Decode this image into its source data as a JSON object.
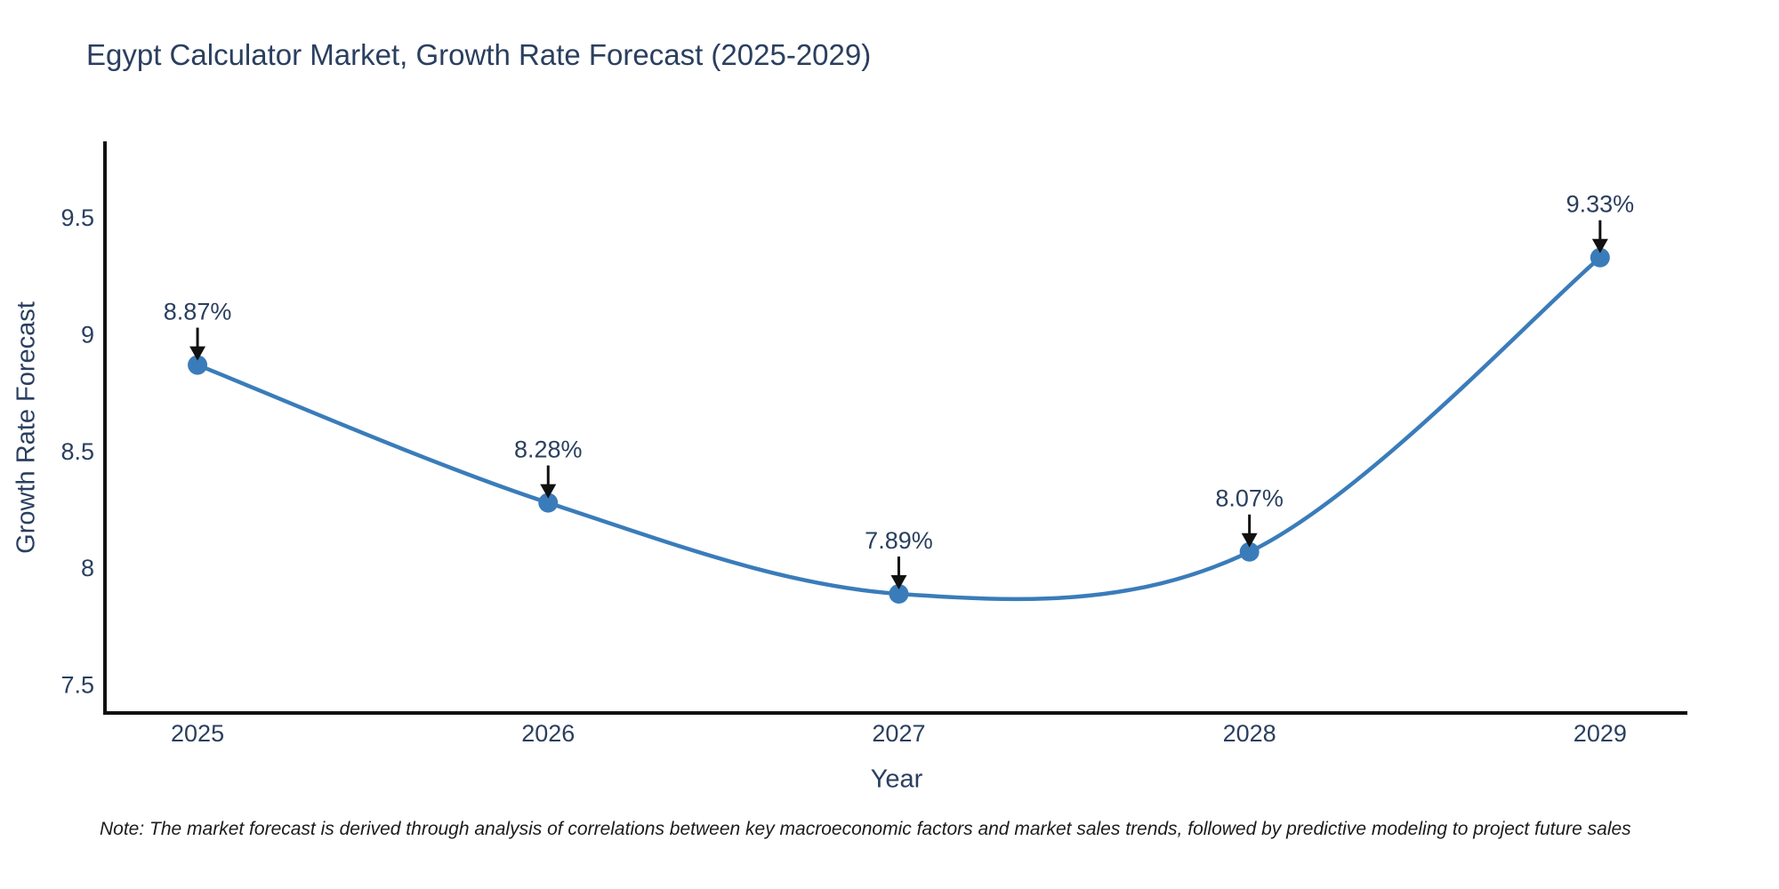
{
  "title": "Egypt Calculator Market, Growth Rate Forecast (2025-2029)",
  "note": "Note: The market forecast is derived through analysis of correlations between key macroeconomic factors and market sales trends, followed by predictive modeling to project future sales",
  "chart_data": {
    "type": "line",
    "title": "Egypt Calculator Market, Growth Rate Forecast (2025-2029)",
    "xlabel": "Year",
    "ylabel": "Growth Rate Forecast",
    "x": [
      2025,
      2026,
      2027,
      2028,
      2029
    ],
    "values": [
      8.87,
      8.28,
      7.89,
      8.07,
      9.33
    ],
    "point_labels": [
      "8.87%",
      "8.28%",
      "7.89%",
      "8.07%",
      "9.33%"
    ],
    "xticks": [
      2025,
      2026,
      2027,
      2028,
      2029
    ],
    "xtick_labels": [
      "2025",
      "2026",
      "2027",
      "2028",
      "2029"
    ],
    "yticks": [
      7.5,
      8,
      8.5,
      9,
      9.5
    ],
    "ytick_labels": [
      "7.5",
      "8",
      "8.5",
      "9",
      "9.5"
    ],
    "xlim": [
      2024.736,
      2029.249
    ],
    "ylim": [
      7.38,
      9.82
    ],
    "line_shape": "spline",
    "grid": false,
    "legend": "none",
    "colors": {
      "line": "#3a7cba",
      "marker": "#3a7cba",
      "axis": "#111111",
      "arrow": "#111111",
      "text": "#2a3f5f"
    }
  }
}
